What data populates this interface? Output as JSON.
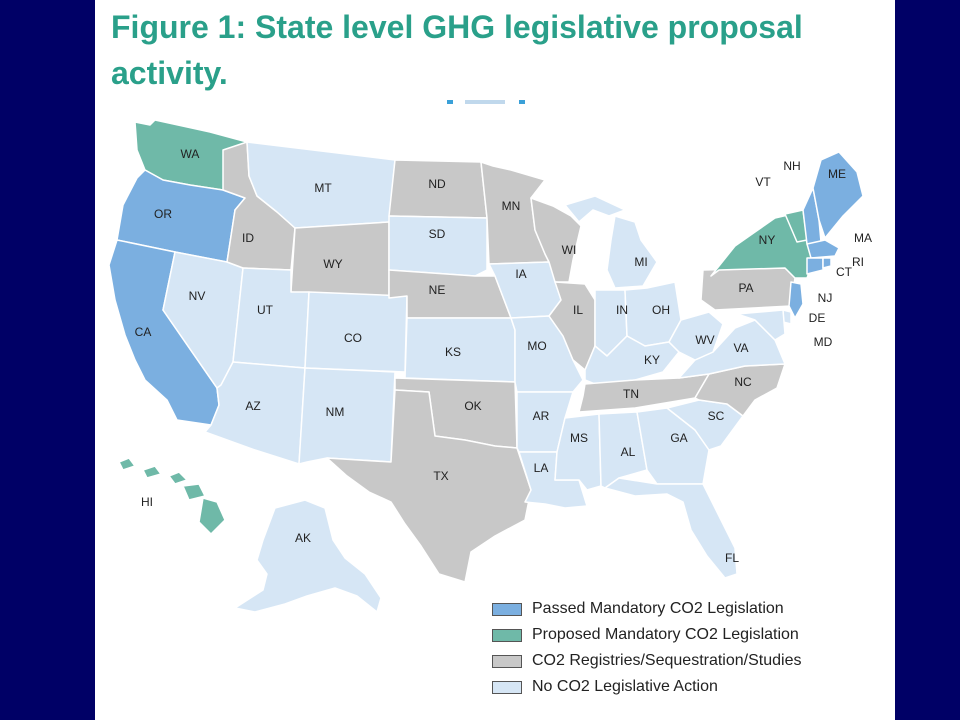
{
  "title": {
    "line1": "Figure 1: State level GHG legislative proposal",
    "line2": "activity."
  },
  "colors": {
    "background": "#000066",
    "title": "#2aa08a",
    "passed": "#7bafe0",
    "proposed": "#6fb9a8",
    "registries": "#c8c8c8",
    "none": "#d6e6f5",
    "border": "#ffffff"
  },
  "categories": {
    "passed": "Passed Mandatory CO2 Legislation",
    "proposed": "Proposed Mandatory CO2 Legislation",
    "registries": "CO2 Registries/Sequestration/Studies",
    "none": "No CO2 Legislative Action"
  },
  "legend": [
    {
      "key": "passed",
      "label": "Passed Mandatory CO2 Legislation"
    },
    {
      "key": "proposed",
      "label": "Proposed Mandatory CO2 Legislation"
    },
    {
      "key": "registries",
      "label": "CO2 Registries/Sequestration/Studies"
    },
    {
      "key": "none",
      "label": "No CO2 Legislative Action"
    }
  ],
  "states": [
    {
      "abbr": "WA",
      "status": "proposed"
    },
    {
      "abbr": "OR",
      "status": "passed"
    },
    {
      "abbr": "CA",
      "status": "passed"
    },
    {
      "abbr": "NV",
      "status": "none"
    },
    {
      "abbr": "ID",
      "status": "registries"
    },
    {
      "abbr": "MT",
      "status": "none"
    },
    {
      "abbr": "WY",
      "status": "registries"
    },
    {
      "abbr": "UT",
      "status": "none"
    },
    {
      "abbr": "AZ",
      "status": "none"
    },
    {
      "abbr": "CO",
      "status": "none"
    },
    {
      "abbr": "NM",
      "status": "none"
    },
    {
      "abbr": "ND",
      "status": "registries"
    },
    {
      "abbr": "SD",
      "status": "none"
    },
    {
      "abbr": "NE",
      "status": "registries"
    },
    {
      "abbr": "KS",
      "status": "none"
    },
    {
      "abbr": "OK",
      "status": "registries"
    },
    {
      "abbr": "TX",
      "status": "registries"
    },
    {
      "abbr": "MN",
      "status": "registries"
    },
    {
      "abbr": "IA",
      "status": "none"
    },
    {
      "abbr": "MO",
      "status": "none"
    },
    {
      "abbr": "AR",
      "status": "none"
    },
    {
      "abbr": "LA",
      "status": "none"
    },
    {
      "abbr": "WI",
      "status": "registries"
    },
    {
      "abbr": "IL",
      "status": "registries"
    },
    {
      "abbr": "MI",
      "status": "none"
    },
    {
      "abbr": "IN",
      "status": "none"
    },
    {
      "abbr": "OH",
      "status": "none"
    },
    {
      "abbr": "KY",
      "status": "none"
    },
    {
      "abbr": "TN",
      "status": "registries"
    },
    {
      "abbr": "MS",
      "status": "none"
    },
    {
      "abbr": "AL",
      "status": "none"
    },
    {
      "abbr": "GA",
      "status": "none"
    },
    {
      "abbr": "FL",
      "status": "none"
    },
    {
      "abbr": "SC",
      "status": "none"
    },
    {
      "abbr": "NC",
      "status": "registries"
    },
    {
      "abbr": "VA",
      "status": "none"
    },
    {
      "abbr": "WV",
      "status": "none"
    },
    {
      "abbr": "PA",
      "status": "registries"
    },
    {
      "abbr": "NY",
      "status": "proposed"
    },
    {
      "abbr": "VT",
      "status": "proposed"
    },
    {
      "abbr": "NH",
      "status": "passed"
    },
    {
      "abbr": "ME",
      "status": "passed"
    },
    {
      "abbr": "MA",
      "status": "passed"
    },
    {
      "abbr": "RI",
      "status": "passed"
    },
    {
      "abbr": "CT",
      "status": "passed"
    },
    {
      "abbr": "NJ",
      "status": "passed"
    },
    {
      "abbr": "DE",
      "status": "none"
    },
    {
      "abbr": "MD",
      "status": "none"
    },
    {
      "abbr": "HI",
      "status": "proposed"
    },
    {
      "abbr": "AK",
      "status": "none"
    }
  ]
}
